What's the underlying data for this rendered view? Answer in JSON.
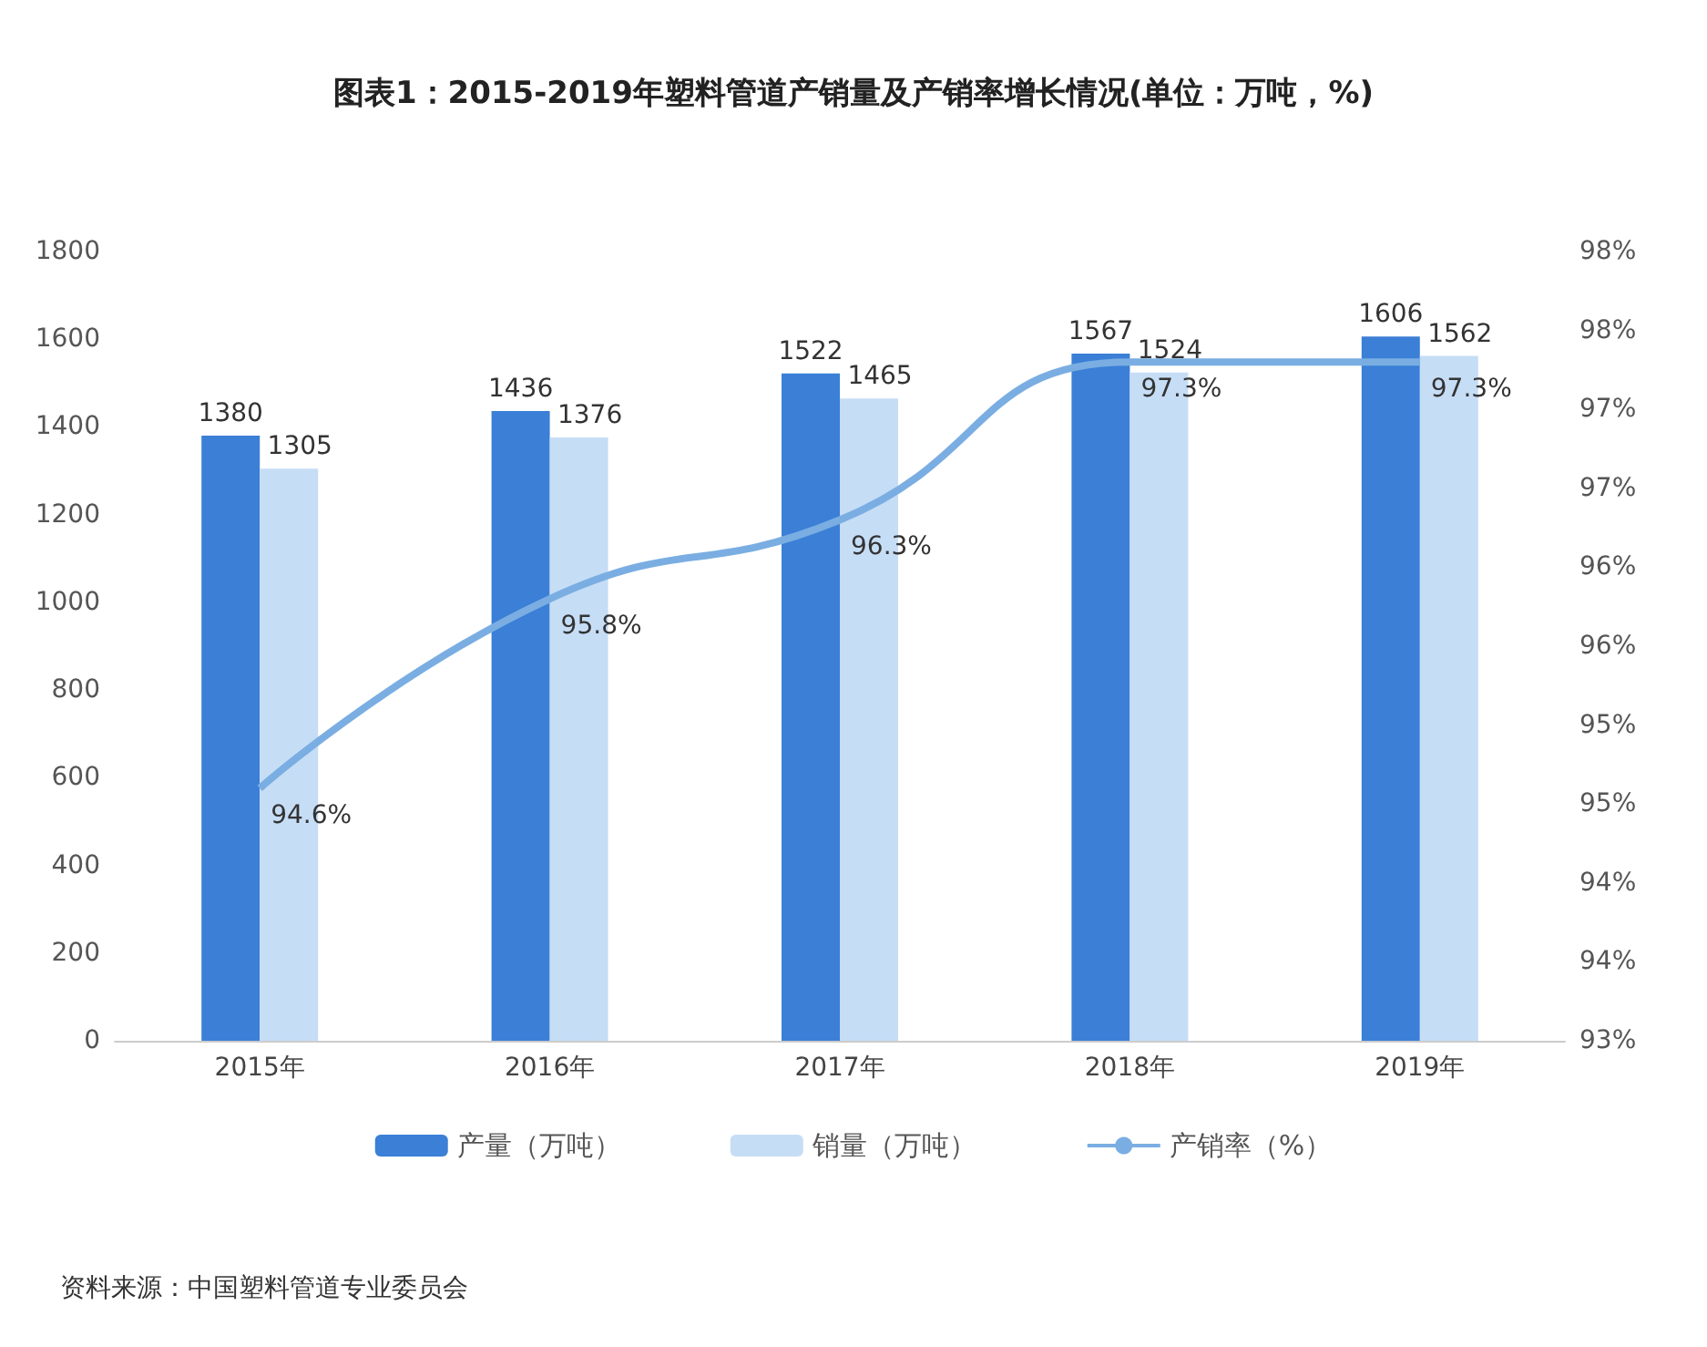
{
  "chart_data": {
    "type": "bar",
    "title": "图表1：2015-2019年塑料管道产销量及产销率增长情况(单位：万吨，%)",
    "categories": [
      "2015年",
      "2016年",
      "2017年",
      "2018年",
      "2019年"
    ],
    "series": [
      {
        "name": "产量（万吨）",
        "color": "#3b7fd6",
        "values": [
          1380,
          1436,
          1522,
          1567,
          1606
        ],
        "value_labels": [
          "1380",
          "1436",
          "1522",
          "1567",
          "1606"
        ]
      },
      {
        "name": "销量（万吨）",
        "color": "#c6ddf6",
        "values": [
          1305,
          1376,
          1465,
          1524,
          1562
        ],
        "value_labels": [
          "1305",
          "1376",
          "1465",
          "1524",
          "1562"
        ]
      },
      {
        "name": "产销率（%）",
        "type": "line",
        "axis": "y2",
        "color": "#7aaee2",
        "values": [
          94.6,
          95.8,
          96.3,
          97.3,
          97.3
        ],
        "value_labels": [
          "94.6%",
          "95.8%",
          "96.3%",
          "97.3%",
          "97.3%"
        ]
      }
    ],
    "ylim": [
      0,
      1800
    ],
    "yticks": [
      0,
      200,
      400,
      600,
      800,
      1000,
      1200,
      1400,
      1600,
      1800
    ],
    "y2lim": [
      93,
      98
    ],
    "y2ticks": [
      {
        "value": 93,
        "label": "93%"
      },
      {
        "value": 93.5,
        "label": "94%"
      },
      {
        "value": 94,
        "label": "94%"
      },
      {
        "value": 94.5,
        "label": "95%"
      },
      {
        "value": 95,
        "label": "95%"
      },
      {
        "value": 95.5,
        "label": "96%"
      },
      {
        "value": 96,
        "label": "96%"
      },
      {
        "value": 96.5,
        "label": "97%"
      },
      {
        "value": 97,
        "label": "97%"
      },
      {
        "value": 97.5,
        "label": "98%"
      },
      {
        "value": 98,
        "label": "98%"
      }
    ],
    "grid": false,
    "legend": "bottom",
    "marker": "none",
    "line_style": "solid",
    "annotations": [
      "资料来源：中国塑料管道专业委员会"
    ]
  }
}
